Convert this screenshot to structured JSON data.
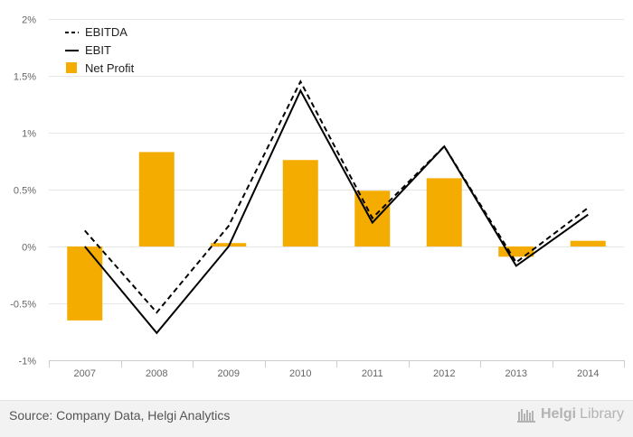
{
  "chart_data": {
    "type": "bar",
    "categories": [
      "2007",
      "2008",
      "2009",
      "2010",
      "2011",
      "2012",
      "2013",
      "2014"
    ],
    "y_ticks": [
      "2%",
      "1.5%",
      "1%",
      "0.5%",
      "0%",
      "-0.5%",
      "-1%"
    ],
    "ylim": [
      -1,
      2
    ],
    "grid": true,
    "legend_position": "top-left",
    "series": [
      {
        "name": "EBITDA",
        "kind": "line",
        "style": "dashed",
        "color": "#000000",
        "values": [
          0.14,
          -0.58,
          0.18,
          1.45,
          0.25,
          0.88,
          -0.14,
          0.34
        ]
      },
      {
        "name": "EBIT",
        "kind": "line",
        "style": "solid",
        "color": "#000000",
        "values": [
          0.0,
          -0.76,
          0.0,
          1.37,
          0.21,
          0.88,
          -0.17,
          0.28
        ]
      },
      {
        "name": "Net Profit",
        "kind": "bar",
        "color": "#f5ac00",
        "values": [
          -0.65,
          0.83,
          0.03,
          0.76,
          0.49,
          0.6,
          -0.09,
          0.05
        ]
      }
    ]
  },
  "footer": {
    "source": "Source: Company Data, Helgi Analytics",
    "logo_part1": "Helgi",
    "logo_part2": "Library"
  }
}
